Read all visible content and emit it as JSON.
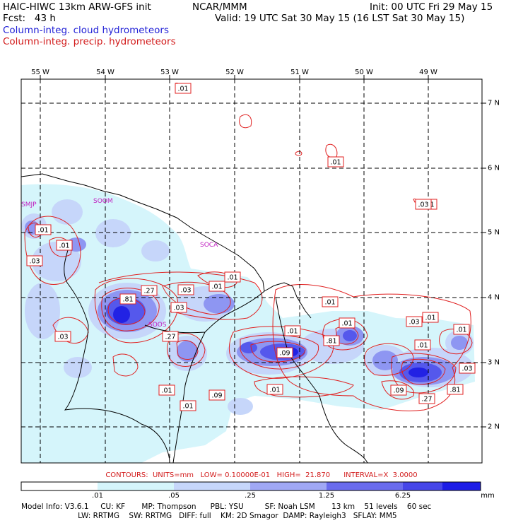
{
  "header": {
    "model_title": "HAIC-HIWC 13km ARW-GFS init",
    "org": "NCAR/MMM",
    "init": "Init: 00 UTC Fri 29 May 15",
    "fcst": "Fcst:   43 h",
    "valid": "Valid: 19 UTC Sat 30 May 15 (16 LST Sat 30 May 15)",
    "field_cloud": "Column-integ. cloud hydrometeors",
    "field_precip": "Column-integ. precip. hydrometeors"
  },
  "axes": {
    "lon_labels": [
      "55 W",
      "54 W",
      "53 W",
      "52 W",
      "51 W",
      "50 W",
      "49 W"
    ],
    "lat_labels": [
      "7 N",
      "6 N",
      "5 N",
      "4 N",
      "3 N",
      "2 N"
    ]
  },
  "places": [
    "SMJP",
    "SOOM",
    "SOCA",
    "SOOS"
  ],
  "contour_labels": [
    ".01",
    ".01",
    ".03",
    ".01",
    ".01",
    ".81",
    ".27",
    ".03",
    ".03",
    ".01",
    ".03",
    ".01",
    ".03",
    ".01",
    ".01",
    ".01",
    ".01",
    ".09",
    ".27",
    ".81",
    ".09",
    ".01",
    ".01",
    ".01",
    ".01",
    ".09",
    ".81",
    ".27",
    ".03",
    ".01",
    ".03",
    ".01"
  ],
  "contours_caption": "CONTOURS:  UNITS=mm   LOW= 0.10000E-01   HIGH=  21.870      INTERVAL=X  3.0000",
  "colorbar": {
    "tick_labels": [
      ".01",
      ".05",
      ".25",
      "1.25",
      "6.25",
      "mm"
    ],
    "colors": [
      "#ffffff",
      "#d5f5fb",
      "#c6d6fa",
      "#a0a8f5",
      "#6a6cee",
      "#4646e8",
      "#1c1ce6"
    ]
  },
  "colors": {
    "contour": "#e02020",
    "coast": "#000000",
    "grid": "#000000",
    "place_label": "#c020c0"
  },
  "model_info": {
    "line1": "Model Info: V3.6.1     CU: KF       MP: Thompson      PBL: YSU         SF: Noah LSM       13 km    51 levels    60 sec",
    "line2": "                        LW: RRTMG    SW: RRTMG   DIFF: full    KM: 2D Smagor  DAMP: Rayleigh3   SFLAY: MM5"
  }
}
